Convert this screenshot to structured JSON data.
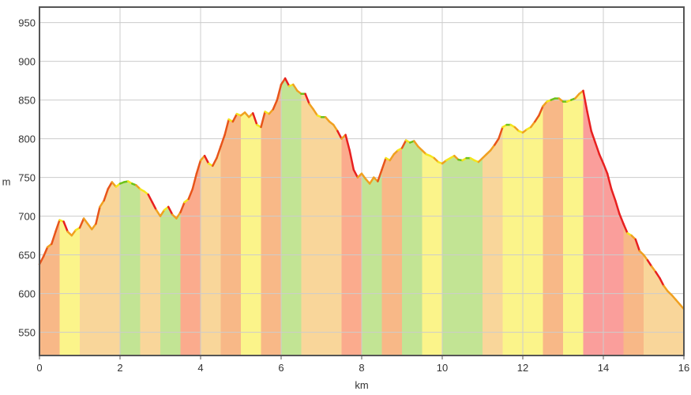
{
  "chart_data": {
    "type": "area",
    "title": "",
    "xlabel": "km",
    "ylabel": "m",
    "xlim": [
      0,
      16
    ],
    "ylim": [
      520,
      970
    ],
    "x_ticks": [
      0,
      2,
      4,
      6,
      8,
      10,
      12,
      14,
      16
    ],
    "x_tick_labels": [
      "0",
      "2",
      "4",
      "6",
      "8",
      "10",
      "12",
      "14",
      "16"
    ],
    "y_ticks": [
      550,
      600,
      650,
      700,
      750,
      800,
      850,
      900,
      950
    ],
    "y_tick_labels": [
      "550",
      "600",
      "650",
      "700",
      "750",
      "800",
      "850",
      "900",
      "950"
    ],
    "grid": true,
    "series": [
      {
        "x": [
          0,
          0.1,
          0.2,
          0.3,
          0.4,
          0.5,
          0.6,
          0.7,
          0.8,
          0.9,
          1.0,
          1.1,
          1.2,
          1.3,
          1.4,
          1.5,
          1.6,
          1.7,
          1.8,
          1.9,
          2.0,
          2.1,
          2.2,
          2.3,
          2.4,
          2.5,
          2.6,
          2.7,
          2.8,
          2.9,
          3.0,
          3.1,
          3.2,
          3.3,
          3.4,
          3.5,
          3.6,
          3.7,
          3.8,
          3.9,
          4.0,
          4.1,
          4.2,
          4.3,
          4.4,
          4.5,
          4.6,
          4.7,
          4.8,
          4.9,
          5.0,
          5.1,
          5.2,
          5.3,
          5.4,
          5.5,
          5.6,
          5.7,
          5.8,
          5.9,
          6.0,
          6.1,
          6.2,
          6.3,
          6.4,
          6.5,
          6.6,
          6.7,
          6.8,
          6.9,
          7.0,
          7.1,
          7.2,
          7.3,
          7.4,
          7.5,
          7.6,
          7.7,
          7.8,
          7.9,
          8.0,
          8.1,
          8.2,
          8.3,
          8.4,
          8.5,
          8.6,
          8.7,
          8.8,
          8.9,
          9.0,
          9.1,
          9.2,
          9.3,
          9.4,
          9.5,
          9.6,
          9.7,
          9.8,
          9.9,
          10.0,
          10.1,
          10.2,
          10.3,
          10.4,
          10.5,
          10.6,
          10.7,
          10.8,
          10.9,
          11.0,
          11.1,
          11.2,
          11.3,
          11.4,
          11.5,
          11.6,
          11.7,
          11.8,
          11.9,
          12.0,
          12.1,
          12.2,
          12.3,
          12.4,
          12.5,
          12.6,
          12.7,
          12.8,
          12.9,
          13.0,
          13.1,
          13.2,
          13.3,
          13.4,
          13.5,
          13.6,
          13.7,
          13.8,
          13.9,
          14.0,
          14.1,
          14.2,
          14.3,
          14.4,
          14.5,
          14.6,
          14.7,
          14.8,
          14.9,
          15.0,
          15.1,
          15.2,
          15.3,
          15.4,
          15.5,
          15.6,
          15.7,
          15.8,
          15.9,
          16.0
        ],
        "y": [
          638,
          648,
          660,
          664,
          680,
          695,
          693,
          680,
          675,
          682,
          685,
          697,
          690,
          683,
          690,
          712,
          720,
          735,
          744,
          738,
          742,
          744,
          745,
          742,
          740,
          735,
          732,
          728,
          718,
          708,
          700,
          708,
          712,
          702,
          697,
          705,
          718,
          722,
          735,
          755,
          772,
          778,
          768,
          765,
          775,
          790,
          805,
          825,
          822,
          832,
          830,
          834,
          828,
          833,
          818,
          815,
          835,
          832,
          838,
          850,
          870,
          878,
          868,
          870,
          862,
          858,
          858,
          845,
          838,
          830,
          828,
          828,
          822,
          818,
          810,
          800,
          805,
          785,
          760,
          750,
          755,
          748,
          742,
          750,
          745,
          760,
          775,
          772,
          780,
          785,
          788,
          798,
          795,
          797,
          790,
          785,
          780,
          778,
          775,
          770,
          768,
          772,
          775,
          778,
          773,
          772,
          775,
          775,
          772,
          770,
          775,
          780,
          785,
          792,
          800,
          815,
          818,
          818,
          815,
          810,
          808,
          812,
          815,
          822,
          830,
          842,
          848,
          850,
          852,
          852,
          848,
          848,
          850,
          852,
          858,
          862,
          835,
          810,
          795,
          780,
          768,
          755,
          735,
          720,
          703,
          690,
          678,
          675,
          670,
          655,
          650,
          643,
          635,
          628,
          620,
          610,
          603,
          598,
          592,
          586,
          580
        ]
      }
    ],
    "bands": [
      {
        "from": 0,
        "to": 0.5,
        "color": "#f8b887"
      },
      {
        "from": 0.5,
        "to": 1.0,
        "color": "#fbf48a"
      },
      {
        "from": 1.0,
        "to": 2.0,
        "color": "#f9d69a"
      },
      {
        "from": 2.0,
        "to": 2.5,
        "color": "#c2e494"
      },
      {
        "from": 2.5,
        "to": 3.0,
        "color": "#f9d69a"
      },
      {
        "from": 3.0,
        "to": 3.5,
        "color": "#c2e494"
      },
      {
        "from": 3.5,
        "to": 4.0,
        "color": "#fbab8d"
      },
      {
        "from": 4.0,
        "to": 4.5,
        "color": "#f9d69a"
      },
      {
        "from": 4.5,
        "to": 5.0,
        "color": "#f8b887"
      },
      {
        "from": 5.0,
        "to": 5.5,
        "color": "#fbf48a"
      },
      {
        "from": 5.5,
        "to": 6.0,
        "color": "#f8b887"
      },
      {
        "from": 6.0,
        "to": 6.5,
        "color": "#c2e494"
      },
      {
        "from": 6.5,
        "to": 7.5,
        "color": "#f9d69a"
      },
      {
        "from": 7.5,
        "to": 8.0,
        "color": "#fbab8d"
      },
      {
        "from": 8.0,
        "to": 8.5,
        "color": "#c2e494"
      },
      {
        "from": 8.5,
        "to": 9.0,
        "color": "#f8b887"
      },
      {
        "from": 9.0,
        "to": 9.5,
        "color": "#c2e494"
      },
      {
        "from": 9.5,
        "to": 10.0,
        "color": "#fbf48a"
      },
      {
        "from": 10.0,
        "to": 11.0,
        "color": "#c2e494"
      },
      {
        "from": 11.0,
        "to": 11.5,
        "color": "#f9d69a"
      },
      {
        "from": 11.5,
        "to": 12.5,
        "color": "#fbf48a"
      },
      {
        "from": 12.5,
        "to": 13.0,
        "color": "#f8b887"
      },
      {
        "from": 13.0,
        "to": 13.5,
        "color": "#fbf48a"
      },
      {
        "from": 13.5,
        "to": 14.5,
        "color": "#fa9e9b"
      },
      {
        "from": 14.5,
        "to": 15.0,
        "color": "#f8b887"
      },
      {
        "from": 15.0,
        "to": 15.5,
        "color": "#f9d69a"
      },
      {
        "from": 15.5,
        "to": 16.0,
        "color": "#f9d69a"
      }
    ],
    "line_segment_colors": {
      "steep_climb": "#e8541a",
      "climb": "#f0a020",
      "gentle": "#f4e61c",
      "flat": "#6cc21a",
      "steep_descent": "#e82020"
    }
  }
}
